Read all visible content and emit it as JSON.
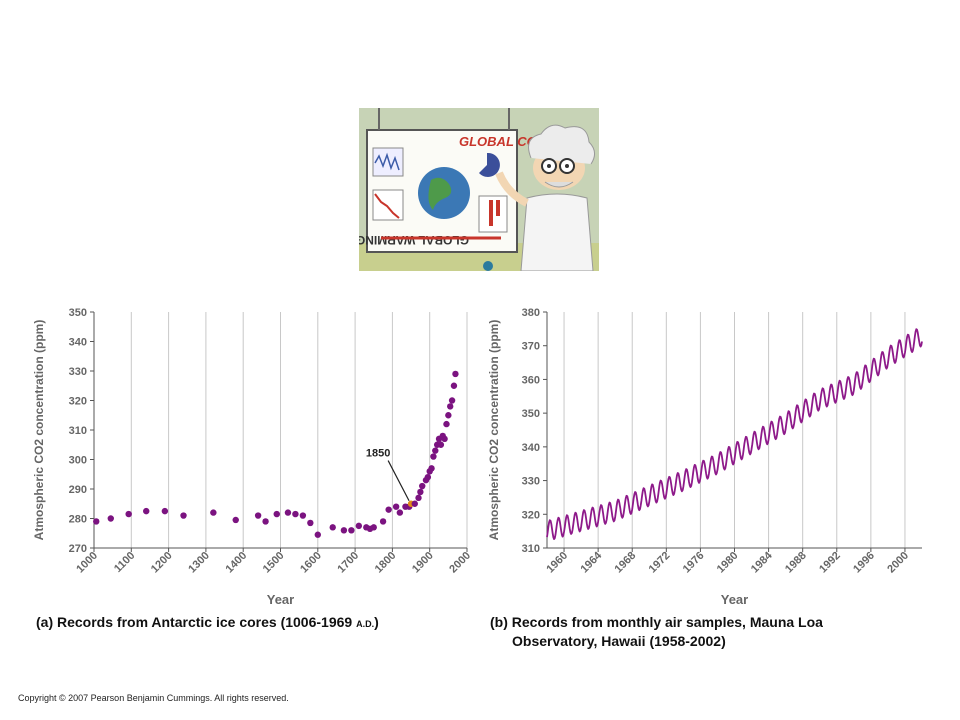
{
  "cartoon": {
    "board_title": "GLOBAL COOLING",
    "board_bottom": "GLOBAL WARMING",
    "icon": "scientist-at-whiteboard-illustration"
  },
  "captions": {
    "a_main": "(a) Records from Antarctic ice cores (1006-1969 ",
    "a_ad": "A.D.",
    "a_end": ")",
    "b_line1": "(b) Records from monthly air samples, Mauna Loa",
    "b_line2": "Observatory, Hawaii (1958-2002)"
  },
  "copyright": "Copyright © 2007 Pearson Benjamin Cummings.  All rights reserved.",
  "chart_data": [
    {
      "type": "scatter",
      "ylabel": "Atmospheric CO2 concentration (ppm)",
      "xlabel": "Year",
      "xlim": [
        1000,
        2000
      ],
      "ylim": [
        270,
        350
      ],
      "xticks": [
        "1000",
        "1100",
        "1200",
        "1300",
        "1400",
        "1500",
        "1600",
        "1700",
        "1800",
        "1900",
        "2000"
      ],
      "yticks": [
        "270",
        "280",
        "290",
        "300",
        "310",
        "320",
        "330",
        "340",
        "350"
      ],
      "annotation": {
        "text": "1850",
        "x": 1850,
        "y": 285
      },
      "point_color": "#7b1380",
      "highlight_color": "#e08a16",
      "grid": true,
      "x": [
        1006,
        1045,
        1093,
        1140,
        1190,
        1240,
        1320,
        1380,
        1440,
        1460,
        1490,
        1520,
        1540,
        1560,
        1580,
        1600,
        1640,
        1670,
        1690,
        1710,
        1730,
        1740,
        1750,
        1775,
        1790,
        1810,
        1820,
        1835,
        1845,
        1850,
        1860,
        1870,
        1875,
        1880,
        1890,
        1895,
        1900,
        1905,
        1910,
        1915,
        1920,
        1925,
        1930,
        1935,
        1940,
        1945,
        1950,
        1955,
        1960,
        1965,
        1969
      ],
      "y": [
        279,
        280,
        281.5,
        282.5,
        282.5,
        281,
        282,
        279.5,
        281,
        279,
        281.5,
        282,
        281.5,
        281,
        278.5,
        274.5,
        277,
        276,
        276,
        277.5,
        277,
        276.5,
        277,
        279,
        283,
        284,
        282,
        284,
        284,
        285,
        285,
        287,
        289,
        291,
        293,
        294,
        296,
        297,
        301,
        303,
        305,
        307,
        305,
        308,
        307,
        312,
        315,
        318,
        320,
        325,
        329
      ]
    },
    {
      "type": "line",
      "ylabel": "Atmospheric CO2 concentration (ppm)",
      "xlabel": "Year",
      "xlim": [
        1958,
        2002
      ],
      "ylim": [
        310,
        380
      ],
      "xticks": [
        "1960",
        "1964",
        "1968",
        "1972",
        "1976",
        "1980",
        "1984",
        "1988",
        "1992",
        "1996",
        "2000"
      ],
      "yticks": [
        "310",
        "320",
        "330",
        "340",
        "350",
        "360",
        "370",
        "380"
      ],
      "line_color": "#8e1a8a",
      "grid": true,
      "trend_description": "monthly values, seasonal amplitude ~6 ppm",
      "annual_mean_x": [
        1958,
        1962,
        1966,
        1970,
        1974,
        1978,
        1982,
        1986,
        1990,
        1994,
        1998,
        2002
      ],
      "annual_mean_y": [
        315,
        318,
        321,
        325.5,
        330,
        335,
        341,
        347,
        354,
        358.5,
        366.5,
        373
      ],
      "seasonal_amplitude": 3
    }
  ]
}
